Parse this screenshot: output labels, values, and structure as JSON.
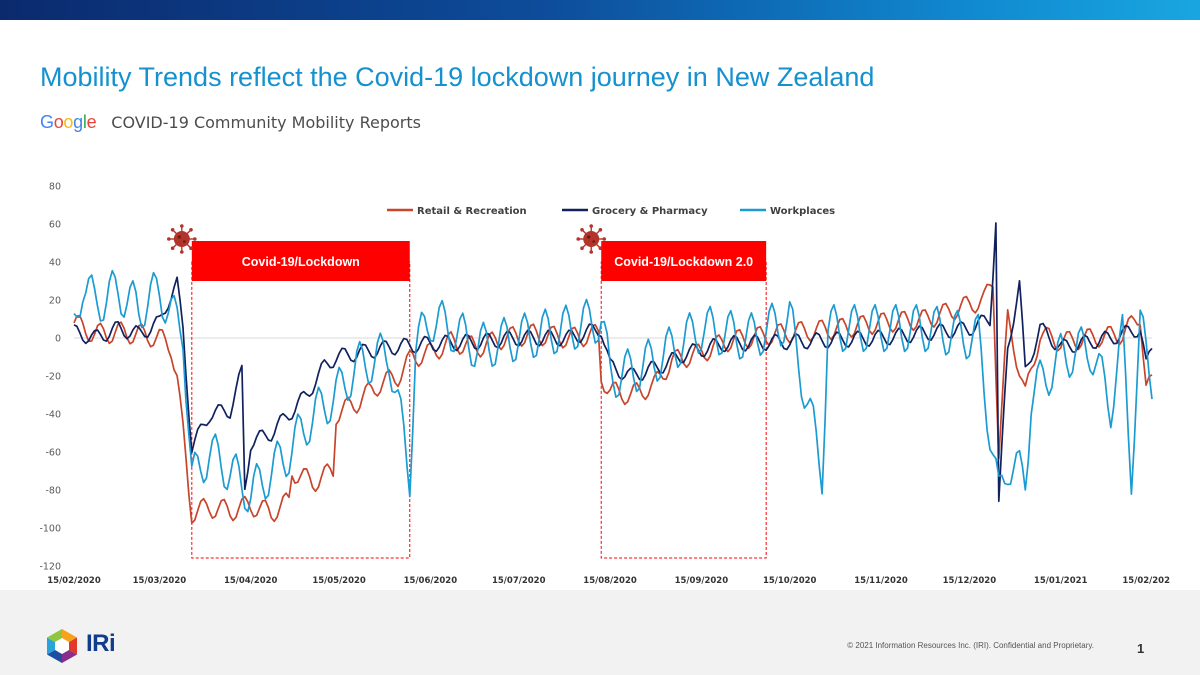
{
  "slide": {
    "title": "Mobility Trends reflect the Covid-19 lockdown journey in New Zealand",
    "source_brand": [
      "G",
      "o",
      "o",
      "g",
      "l",
      "e"
    ],
    "source_title": "COVID-19 Community Mobility Reports",
    "copyright": "© 2021 Information Resources Inc. (IRI). Confidential and Proprietary.",
    "page_number": "1",
    "company_logo_text": "IRi"
  },
  "colors": {
    "title": "#1591cf",
    "retail": "#c8442a",
    "grocery": "#10215e",
    "workplaces": "#1b9bd1",
    "lockdown_box": "#ff0000",
    "virus_icon": "#b2342a"
  },
  "chart_data": {
    "type": "line",
    "x_type": "date",
    "xlim": [
      "2020-02-15",
      "2021-02-15"
    ],
    "ylim": [
      -120,
      80
    ],
    "y_ticks": [
      80,
      60,
      40,
      20,
      0,
      -20,
      -40,
      -60,
      -80,
      -100,
      -120
    ],
    "x_tick_labels": [
      "15/02/2020",
      "15/03/2020",
      "15/04/2020",
      "15/05/2020",
      "15/06/2020",
      "15/07/2020",
      "15/08/2020",
      "15/09/2020",
      "15/10/2020",
      "15/11/2020",
      "15/12/2020",
      "15/01/2021",
      "15/02/202"
    ],
    "x_tick_dates": [
      "2020-02-15",
      "2020-03-15",
      "2020-04-15",
      "2020-05-15",
      "2020-06-15",
      "2020-07-15",
      "2020-08-15",
      "2020-09-15",
      "2020-10-15",
      "2020-11-15",
      "2020-12-15",
      "2021-01-15",
      "2021-02-15"
    ],
    "grid": false,
    "legend_position": "top",
    "series": [
      {
        "name": "Retail & Recreation",
        "color": "#c8442a",
        "points": [
          [
            "2020-02-15",
            8
          ],
          [
            "2020-02-22",
            2
          ],
          [
            "2020-03-01",
            3
          ],
          [
            "2020-03-08",
            2
          ],
          [
            "2020-03-15",
            0
          ],
          [
            "2020-03-19",
            -5
          ],
          [
            "2020-03-21",
            -20
          ],
          [
            "2020-03-23",
            -50
          ],
          [
            "2020-03-25",
            -80
          ],
          [
            "2020-03-26",
            -92
          ],
          [
            "2020-04-01",
            -89
          ],
          [
            "2020-04-08",
            -91
          ],
          [
            "2020-04-15",
            -88
          ],
          [
            "2020-04-22",
            -92
          ],
          [
            "2020-04-28",
            -86
          ],
          [
            "2020-04-29",
            -70
          ],
          [
            "2020-05-06",
            -76
          ],
          [
            "2020-05-13",
            -70
          ],
          [
            "2020-05-14",
            -40
          ],
          [
            "2020-05-21",
            -34
          ],
          [
            "2020-05-28",
            -25
          ],
          [
            "2020-06-04",
            -20
          ],
          [
            "2020-06-09",
            -10
          ],
          [
            "2020-06-15",
            -8
          ],
          [
            "2020-06-22",
            -2
          ],
          [
            "2020-07-01",
            -5
          ],
          [
            "2020-07-10",
            0
          ],
          [
            "2020-07-20",
            2
          ],
          [
            "2020-08-01",
            0
          ],
          [
            "2020-08-11",
            2
          ],
          [
            "2020-08-12",
            -20
          ],
          [
            "2020-08-15",
            -28
          ],
          [
            "2020-08-22",
            -30
          ],
          [
            "2020-08-30",
            -25
          ],
          [
            "2020-09-05",
            -12
          ],
          [
            "2020-09-15",
            -8
          ],
          [
            "2020-09-23",
            -2
          ],
          [
            "2020-10-01",
            0
          ],
          [
            "2020-10-15",
            3
          ],
          [
            "2020-11-01",
            5
          ],
          [
            "2020-11-15",
            8
          ],
          [
            "2020-12-01",
            10
          ],
          [
            "2020-12-10",
            15
          ],
          [
            "2020-12-20",
            20
          ],
          [
            "2020-12-23",
            30
          ],
          [
            "2020-12-25",
            -60
          ],
          [
            "2020-12-28",
            10
          ],
          [
            "2021-01-03",
            -30
          ],
          [
            "2021-01-08",
            2
          ],
          [
            "2021-01-15",
            -2
          ],
          [
            "2021-01-25",
            0
          ],
          [
            "2021-02-05",
            2
          ],
          [
            "2021-02-11",
            12
          ],
          [
            "2021-02-13",
            -26
          ],
          [
            "2021-02-15",
            -24
          ]
        ]
      },
      {
        "name": "Grocery & Pharmacy",
        "color": "#10215e",
        "points": [
          [
            "2020-02-15",
            3
          ],
          [
            "2020-02-22",
            0
          ],
          [
            "2020-03-01",
            5
          ],
          [
            "2020-03-08",
            2
          ],
          [
            "2020-03-15",
            8
          ],
          [
            "2020-03-18",
            20
          ],
          [
            "2020-03-21",
            28
          ],
          [
            "2020-03-23",
            5
          ],
          [
            "2020-03-26",
            -58
          ],
          [
            "2020-04-01",
            -40
          ],
          [
            "2020-04-08",
            -38
          ],
          [
            "2020-04-12",
            -18
          ],
          [
            "2020-04-13",
            -80
          ],
          [
            "2020-04-15",
            -55
          ],
          [
            "2020-04-22",
            -50
          ],
          [
            "2020-04-28",
            -40
          ],
          [
            "2020-05-04",
            -30
          ],
          [
            "2020-05-10",
            -15
          ],
          [
            "2020-05-14",
            -10
          ],
          [
            "2020-05-21",
            -8
          ],
          [
            "2020-06-01",
            -5
          ],
          [
            "2020-06-15",
            -3
          ],
          [
            "2020-07-01",
            -2
          ],
          [
            "2020-07-15",
            0
          ],
          [
            "2020-08-01",
            0
          ],
          [
            "2020-08-12",
            5
          ],
          [
            "2020-08-15",
            -15
          ],
          [
            "2020-08-22",
            -20
          ],
          [
            "2020-09-01",
            -15
          ],
          [
            "2020-09-10",
            -8
          ],
          [
            "2020-09-23",
            -3
          ],
          [
            "2020-10-15",
            -2
          ],
          [
            "2020-11-15",
            0
          ],
          [
            "2020-12-15",
            5
          ],
          [
            "2020-12-22",
            10
          ],
          [
            "2020-12-24",
            62
          ],
          [
            "2020-12-25",
            -88
          ],
          [
            "2020-12-28",
            -5
          ],
          [
            "2021-01-01",
            28
          ],
          [
            "2021-01-03",
            -18
          ],
          [
            "2021-01-08",
            5
          ],
          [
            "2021-01-15",
            -5
          ],
          [
            "2021-02-01",
            0
          ],
          [
            "2021-02-11",
            5
          ],
          [
            "2021-02-13",
            -15
          ],
          [
            "2021-02-15",
            -5
          ]
        ]
      },
      {
        "name": "Workplaces",
        "color": "#1b9bd1",
        "points": [
          [
            "2020-02-15",
            5
          ],
          [
            "2020-02-18",
            30
          ],
          [
            "2020-02-22",
            18
          ],
          [
            "2020-03-01",
            25
          ],
          [
            "2020-03-08",
            15
          ],
          [
            "2020-03-15",
            25
          ],
          [
            "2020-03-20",
            10
          ],
          [
            "2020-03-23",
            5
          ],
          [
            "2020-03-26",
            -75
          ],
          [
            "2020-04-01",
            -60
          ],
          [
            "2020-04-08",
            -70
          ],
          [
            "2020-04-15",
            -82
          ],
          [
            "2020-04-22",
            -70
          ],
          [
            "2020-04-28",
            -60
          ],
          [
            "2020-05-04",
            -45
          ],
          [
            "2020-05-10",
            -35
          ],
          [
            "2020-05-14",
            -30
          ],
          [
            "2020-05-21",
            -15
          ],
          [
            "2020-06-01",
            -8
          ],
          [
            "2020-06-08",
            -72
          ],
          [
            "2020-06-10",
            -5
          ],
          [
            "2020-06-15",
            10
          ],
          [
            "2020-06-22",
            5
          ],
          [
            "2020-07-01",
            -5
          ],
          [
            "2020-07-15",
            0
          ],
          [
            "2020-08-01",
            5
          ],
          [
            "2020-08-12",
            10
          ],
          [
            "2020-08-15",
            -20
          ],
          [
            "2020-08-22",
            -18
          ],
          [
            "2020-09-01",
            -10
          ],
          [
            "2020-09-15",
            5
          ],
          [
            "2020-10-01",
            0
          ],
          [
            "2020-10-15",
            10
          ],
          [
            "2020-10-26",
            -70
          ],
          [
            "2020-10-28",
            5
          ],
          [
            "2020-11-15",
            5
          ],
          [
            "2020-12-01",
            5
          ],
          [
            "2020-12-18",
            0
          ],
          [
            "2020-12-25",
            -85
          ],
          [
            "2020-12-28",
            -65
          ],
          [
            "2021-01-03",
            -75
          ],
          [
            "2021-01-05",
            -30
          ],
          [
            "2021-01-15",
            -10
          ],
          [
            "2021-01-25",
            -5
          ],
          [
            "2021-02-01",
            -35
          ],
          [
            "2021-02-05",
            0
          ],
          [
            "2021-02-08",
            -70
          ],
          [
            "2021-02-11",
            5
          ],
          [
            "2021-02-15",
            -20
          ]
        ]
      }
    ],
    "annotations": [
      {
        "label": "Covid-19/Lockdown",
        "start": "2020-03-26",
        "end": "2020-06-08"
      },
      {
        "label": "Covid-19/Lockdown 2.0",
        "start": "2020-08-12",
        "end": "2020-10-07"
      }
    ]
  }
}
